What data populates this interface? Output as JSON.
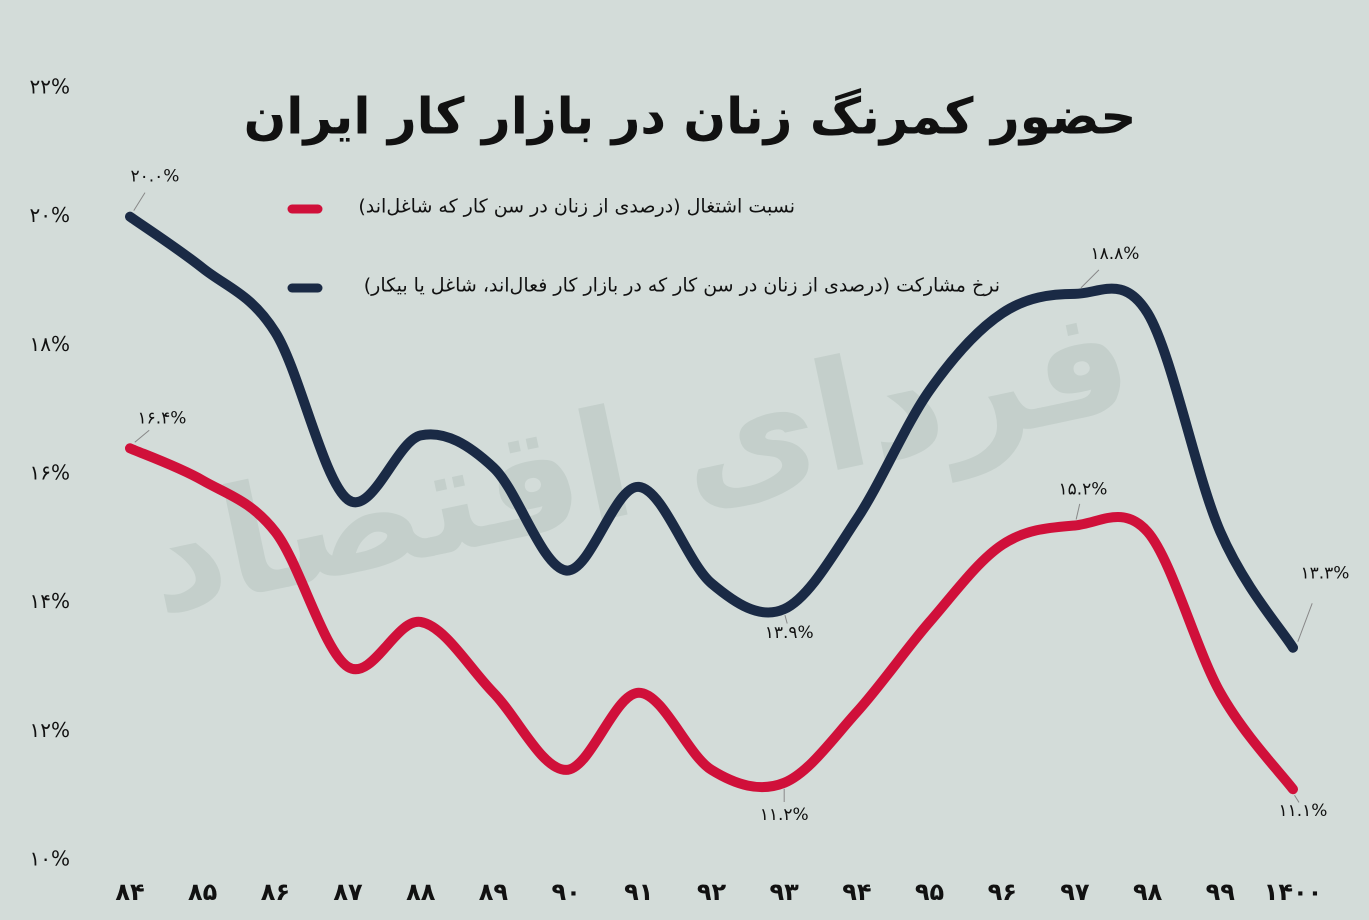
{
  "chart_data": {
    "type": "line",
    "title": "حضور کمرنگ زنان در بازار کار ایران",
    "watermark": "فردای اقتصاد",
    "categories": [
      "۸۴",
      "۸۵",
      "۸۶",
      "۸۷",
      "۸۸",
      "۸۹",
      "۹۰",
      "۹۱",
      "۹۲",
      "۹۳",
      "۹۴",
      "۹۵",
      "۹۶",
      "۹۷",
      "۹۸",
      "۹۹",
      "۱۴۰۰"
    ],
    "series": [
      {
        "name": "نسبت اشتغال (درصدی از زنان در سن کار که شاغل‌اند)",
        "color": "#d0103a",
        "values": [
          16.4,
          15.9,
          15.1,
          13.0,
          13.7,
          12.6,
          11.4,
          12.6,
          11.4,
          11.2,
          12.3,
          13.7,
          14.9,
          15.2,
          15.1,
          12.6,
          11.1
        ],
        "value_labels": [
          "۱۶.۴%",
          null,
          null,
          null,
          null,
          null,
          null,
          null,
          null,
          "۱۱.۲%",
          null,
          null,
          null,
          "۱۵.۲%",
          null,
          null,
          "۱۱.۱%"
        ]
      },
      {
        "name": "نرخ مشارکت (درصدی از زنان در سن کار که در بازار کار فعال‌اند، شاغل یا بیکار)",
        "color": "#1a2a45",
        "values": [
          20.0,
          19.2,
          18.2,
          15.6,
          16.6,
          16.1,
          14.5,
          15.8,
          14.3,
          13.9,
          15.3,
          17.3,
          18.5,
          18.8,
          18.5,
          15.1,
          13.3
        ],
        "value_labels": [
          "۲۰.۰%",
          null,
          null,
          null,
          null,
          null,
          null,
          null,
          null,
          "۱۳.۹%",
          null,
          null,
          null,
          "۱۸.۸%",
          null,
          null,
          "۱۳.۳%"
        ]
      }
    ],
    "ylim": [
      10,
      22
    ],
    "yticks": [
      {
        "value": 10,
        "label": "۱۰%"
      },
      {
        "value": 12,
        "label": "۱۲%"
      },
      {
        "value": 14,
        "label": "۱۴%"
      },
      {
        "value": 16,
        "label": "۱۶%"
      },
      {
        "value": 18,
        "label": "۱۸%"
      },
      {
        "value": 20,
        "label": "۲۰%"
      },
      {
        "value": 22,
        "label": "۲۲%"
      }
    ],
    "grid": false
  }
}
